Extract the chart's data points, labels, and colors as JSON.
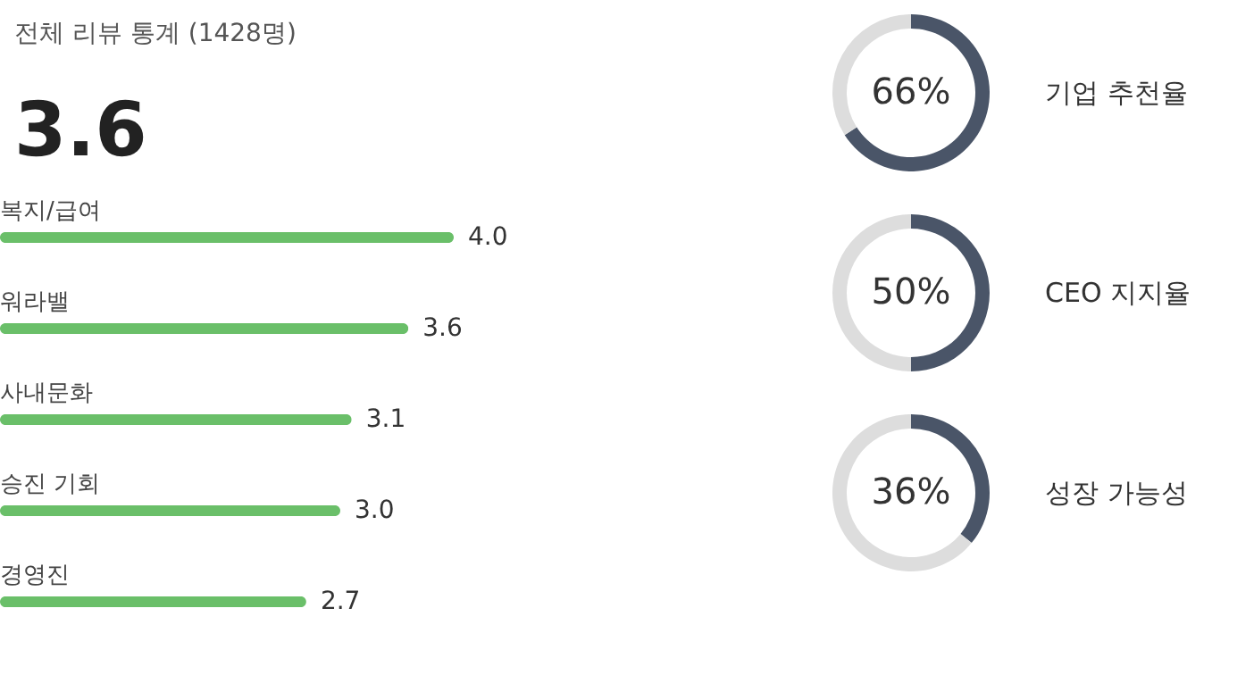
{
  "chart_data": [
    {
      "type": "other",
      "title": "전체 리뷰 통계 (1428명)",
      "annotations": [
        "3.6"
      ]
    },
    {
      "type": "bar",
      "orientation": "horizontal",
      "categories": [
        "복지/급여",
        "워라밸",
        "사내문화",
        "승진 기회",
        "경영진"
      ],
      "values": [
        4.0,
        3.6,
        3.1,
        3.0,
        2.7
      ],
      "color": "#6abf69",
      "value_labels": [
        "4.0",
        "3.6",
        "3.1",
        "3.0",
        "2.7"
      ],
      "tick_labels": false
    },
    {
      "type": "donut",
      "title": "기업 추천율",
      "categories": [
        null,
        null
      ],
      "values": [
        66,
        34
      ],
      "colors": [
        "#4a5568",
        "#dddddd"
      ],
      "annotations": [
        "66%"
      ]
    },
    {
      "type": "donut",
      "title": "CEO 지지율",
      "categories": [
        null,
        null
      ],
      "values": [
        50,
        50
      ],
      "colors": [
        "#4a5568",
        "#dddddd"
      ],
      "annotations": [
        "50%"
      ]
    },
    {
      "type": "donut",
      "title": "성장 가능성",
      "categories": [
        null,
        null
      ],
      "values": [
        36,
        64
      ],
      "colors": [
        "#4a5568",
        "#dddddd"
      ],
      "annotations": [
        "36%"
      ]
    }
  ]
}
